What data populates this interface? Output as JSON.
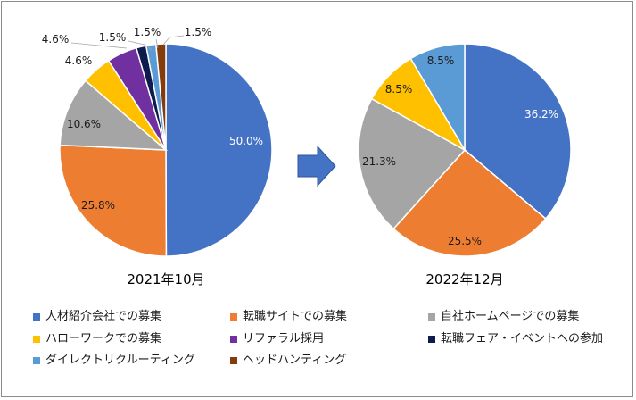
{
  "colors": {
    "人材紹介会社": "#4472C4",
    "転職サイト": "#ED7D31",
    "自社ホームページ": "#A5A5A5",
    "ハローワーク": "#FFC000",
    "リファラル採用": "#7030A0",
    "転職フェア": "#0D1B4F",
    "ダイレクトリクルーティング": "#5B9BD5",
    "ヘッドハンティング": "#843C0C",
    "arrow": "#4472C4"
  },
  "chart_data": [
    {
      "type": "pie",
      "caption": "2021年10月",
      "slices": [
        {
          "label": "人材紹介会社での募集",
          "value": 50.0,
          "text": "50.0%",
          "label_color": "#ffffff"
        },
        {
          "label": "転職サイトでの募集",
          "value": 25.8,
          "text": "25.8%",
          "label_color": "#1a1a1a"
        },
        {
          "label": "自社ホームページでの募集",
          "value": 10.6,
          "text": "10.6%",
          "label_color": "#1a1a1a"
        },
        {
          "label": "ハローワークでの募集",
          "value": 4.6,
          "text": "4.6%",
          "label_color": "#1a1a1a"
        },
        {
          "label": "リファラル採用",
          "value": 4.6,
          "text": "4.6%",
          "label_color": "#1a1a1a"
        },
        {
          "label": "転職フェア・イベントへの参加",
          "value": 1.5,
          "text": "1.5%",
          "label_color": "#1a1a1a"
        },
        {
          "label": "ダイレクトリクルーティング",
          "value": 1.5,
          "text": "1.5%",
          "label_color": "#1a1a1a"
        },
        {
          "label": "ヘッドハンティング",
          "value": 1.5,
          "text": "1.5%",
          "label_color": "#1a1a1a"
        }
      ]
    },
    {
      "type": "pie",
      "caption": "2022年12月",
      "slices": [
        {
          "label": "人材紹介会社での募集",
          "value": 36.2,
          "text": "36.2%",
          "label_color": "#ffffff"
        },
        {
          "label": "転職サイトでの募集",
          "value": 25.5,
          "text": "25.5%",
          "label_color": "#1a1a1a"
        },
        {
          "label": "自社ホームページでの募集",
          "value": 21.3,
          "text": "21.3%",
          "label_color": "#1a1a1a"
        },
        {
          "label": "ハローワークでの募集",
          "value": 8.5,
          "text": "8.5%",
          "label_color": "#1a1a1a"
        },
        {
          "label": "ダイレクトリクルーティング",
          "value": 8.5,
          "text": "8.5%",
          "label_color": "#1a1a1a"
        }
      ]
    }
  ],
  "legend": [
    {
      "label": "人材紹介会社での募集",
      "color_key": "人材紹介会社"
    },
    {
      "label": "転職サイトでの募集",
      "color_key": "転職サイト"
    },
    {
      "label": "自社ホームページでの募集",
      "color_key": "自社ホームページ"
    },
    {
      "label": "ハローワークでの募集",
      "color_key": "ハローワーク"
    },
    {
      "label": "リファラル採用",
      "color_key": "リファラル採用"
    },
    {
      "label": "転職フェア・イベントへの参加",
      "color_key": "転職フェア"
    },
    {
      "label": "ダイレクトリクルーティング",
      "color_key": "ダイレクトリクルーティング"
    },
    {
      "label": "ヘッドハンティング",
      "color_key": "ヘッドハンティング"
    }
  ]
}
